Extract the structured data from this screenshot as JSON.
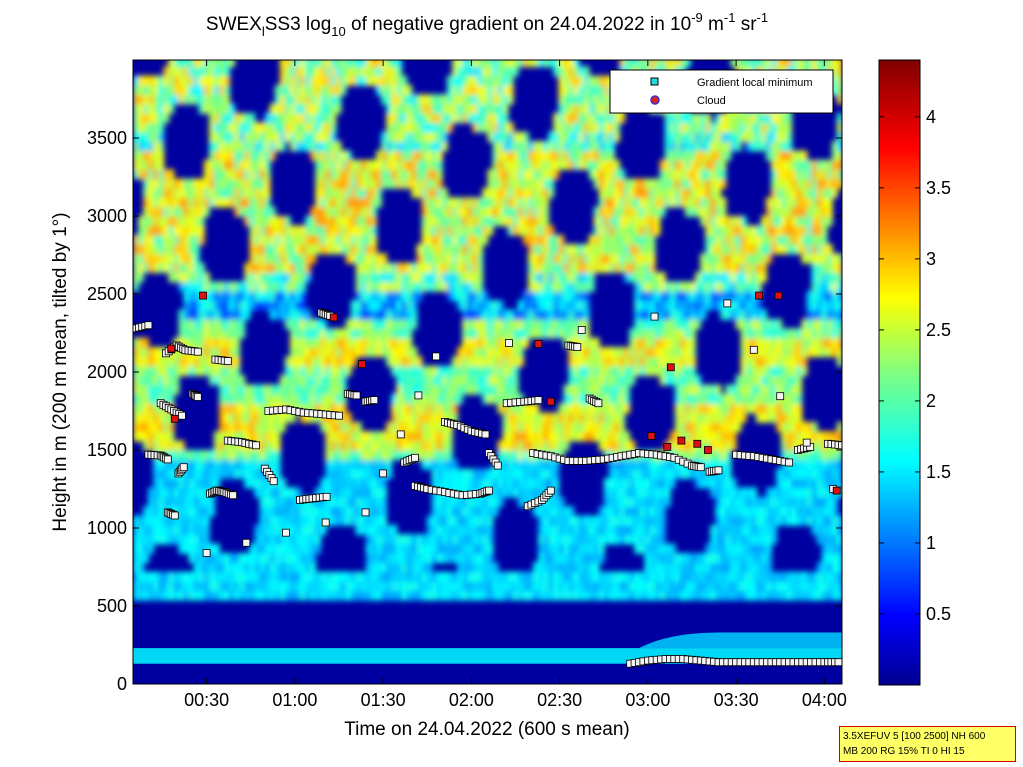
{
  "chart_data": {
    "type": "heatmap",
    "title": {
      "part1": "SWEX",
      "sub1": "l",
      "part2": "SS3 log",
      "sub2": "10",
      "part3": " of negative gradient on 24.04.2022 in 10",
      "sup1": "-9",
      "part4": " m",
      "sup2": "-1",
      "part5": " sr",
      "sup3": "-1"
    },
    "xlabel": "Time on 24.04.2022 (600 s mean)",
    "ylabel": "Height in m (200 m mean, tilted by 1°)",
    "x_ticks": [
      "00:30",
      "01:00",
      "01:30",
      "02:00",
      "02:30",
      "03:00",
      "03:30",
      "04:00"
    ],
    "x_tick_hours": [
      0.5,
      1.0,
      1.5,
      2.0,
      2.5,
      3.0,
      3.5,
      4.0
    ],
    "xlim_hours": [
      0.083,
      4.1
    ],
    "y_ticks": [
      "0",
      "500",
      "1000",
      "1500",
      "2000",
      "2500",
      "3000",
      "3500"
    ],
    "y_tick_values": [
      0,
      500,
      1000,
      1500,
      2000,
      2500,
      3000,
      3500
    ],
    "ylim": [
      0,
      4000
    ],
    "colorbar": {
      "ticks": [
        "0.5",
        "1",
        "1.5",
        "2",
        "2.5",
        "3",
        "3.5",
        "4"
      ],
      "tick_values": [
        0.5,
        1,
        1.5,
        2,
        2.5,
        3,
        3.5,
        4
      ],
      "range": [
        0,
        4.4
      ],
      "colormap": "jet"
    },
    "legend": {
      "placement": "top-right",
      "entries": [
        {
          "label": "Gradient local minimum",
          "marker": "square",
          "color": "#22dddd"
        },
        {
          "label": "Cloud",
          "marker": "circle",
          "color": "#dd2222"
        }
      ]
    },
    "series": [
      {
        "name": "Gradient local minimum",
        "tracks": [
          [
            [
              0.1,
              2280
            ],
            [
              0.17,
              2300
            ]
          ],
          [
            [
              0.17,
              1470
            ],
            [
              0.24,
              1465
            ],
            [
              0.28,
              1440
            ]
          ],
          [
            [
              0.24,
              1800
            ],
            [
              0.3,
              1760
            ],
            [
              0.36,
              1720
            ]
          ],
          [
            [
              0.27,
              2120
            ],
            [
              0.33,
              2170
            ],
            [
              0.38,
              2140
            ],
            [
              0.45,
              2130
            ]
          ],
          [
            [
              0.28,
              1100
            ],
            [
              0.32,
              1080
            ]
          ],
          [
            [
              0.34,
              1350
            ],
            [
              0.37,
              1390
            ]
          ],
          [
            [
              0.42,
              1860
            ],
            [
              0.45,
              1840
            ]
          ],
          [
            [
              0.52,
              1220
            ],
            [
              0.56,
              1240
            ],
            [
              0.6,
              1230
            ],
            [
              0.65,
              1210
            ]
          ],
          [
            [
              0.55,
              2080
            ],
            [
              0.62,
              2070
            ]
          ],
          [
            [
              0.62,
              1560
            ],
            [
              0.7,
              1550
            ],
            [
              0.78,
              1530
            ]
          ],
          [
            [
              0.83,
              1380
            ],
            [
              0.88,
              1300
            ]
          ],
          [
            [
              0.85,
              1750
            ],
            [
              0.95,
              1760
            ],
            [
              1.05,
              1740
            ],
            [
              1.15,
              1730
            ],
            [
              1.25,
              1720
            ]
          ],
          [
            [
              1.03,
              1180
            ],
            [
              1.1,
              1190
            ],
            [
              1.18,
              1200
            ]
          ],
          [
            [
              1.15,
              2380
            ],
            [
              1.2,
              2360
            ]
          ],
          [
            [
              1.3,
              1860
            ],
            [
              1.35,
              1850
            ]
          ],
          [
            [
              1.4,
              1810
            ],
            [
              1.45,
              1820
            ]
          ],
          [
            [
              1.62,
              1420
            ],
            [
              1.68,
              1450
            ]
          ],
          [
            [
              1.68,
              1270
            ],
            [
              1.75,
              1250
            ],
            [
              1.85,
              1230
            ],
            [
              1.95,
              1210
            ],
            [
              2.05,
              1220
            ],
            [
              2.1,
              1240
            ]
          ],
          [
            [
              1.85,
              1680
            ],
            [
              1.92,
              1660
            ],
            [
              2.0,
              1620
            ],
            [
              2.08,
              1600
            ]
          ],
          [
            [
              2.1,
              1480
            ],
            [
              2.15,
              1400
            ]
          ],
          [
            [
              2.2,
              1800
            ],
            [
              2.3,
              1810
            ],
            [
              2.38,
              1820
            ]
          ],
          [
            [
              2.32,
              1140
            ],
            [
              2.4,
              1180
            ],
            [
              2.45,
              1240
            ]
          ],
          [
            [
              2.35,
              1480
            ],
            [
              2.45,
              1460
            ],
            [
              2.55,
              1430
            ],
            [
              2.65,
              1430
            ],
            [
              2.75,
              1440
            ],
            [
              2.85,
              1460
            ],
            [
              2.95,
              1480
            ],
            [
              3.05,
              1470
            ],
            [
              3.15,
              1450
            ],
            [
              3.25,
              1400
            ],
            [
              3.3,
              1390
            ]
          ],
          [
            [
              2.55,
              2170
            ],
            [
              2.6,
              2160
            ]
          ],
          [
            [
              2.67,
              1830
            ],
            [
              2.72,
              1800
            ]
          ],
          [
            [
              2.9,
              130
            ],
            [
              3.0,
              150
            ],
            [
              3.1,
              160
            ],
            [
              3.2,
              160
            ],
            [
              3.3,
              150
            ],
            [
              3.4,
              140
            ],
            [
              3.5,
              140
            ],
            [
              3.6,
              140
            ],
            [
              3.7,
              140
            ],
            [
              3.8,
              140
            ],
            [
              3.9,
              140
            ],
            [
              4.0,
              140
            ],
            [
              4.08,
              140
            ]
          ],
          [
            [
              3.35,
              1360
            ],
            [
              3.4,
              1370
            ]
          ],
          [
            [
              3.5,
              1470
            ],
            [
              3.6,
              1460
            ],
            [
              3.7,
              1440
            ],
            [
              3.8,
              1420
            ]
          ],
          [
            [
              3.85,
              1500
            ],
            [
              3.92,
              1520
            ]
          ],
          [
            [
              4.02,
              1540
            ],
            [
              4.1,
              1530
            ]
          ],
          [
            [
              0.5,
              840
            ],
            [
              1.4,
              1100
            ],
            [
              1.8,
              2100
            ],
            [
              3.45,
              2440
            ],
            [
              4.05,
              1250
            ]
          ]
        ]
      },
      {
        "name": "Cloud",
        "points": [
          [
            0.48,
            2490
          ],
          [
            0.32,
            1700
          ],
          [
            0.3,
            2150
          ],
          [
            1.22,
            2350
          ],
          [
            1.38,
            2050
          ],
          [
            2.38,
            2180
          ],
          [
            2.45,
            1810
          ],
          [
            3.02,
            1590
          ],
          [
            3.11,
            1520
          ],
          [
            3.19,
            1560
          ],
          [
            3.28,
            1540
          ],
          [
            3.34,
            1500
          ],
          [
            3.13,
            2030
          ],
          [
            3.63,
            2490
          ],
          [
            3.74,
            2490
          ],
          [
            4.07,
            1240
          ]
        ]
      }
    ],
    "heatmap_features": {
      "ground_band_m": [
        130,
        230
      ],
      "surface_return_rise": {
        "start_hour": 2.95,
        "height_m": 330
      },
      "dense_layers_m": [
        [
          1500,
          1750
        ],
        [
          2000,
          2200
        ],
        [
          2600,
          3400
        ]
      ],
      "bright_patches_m": [
        [
          3500,
          3950
        ]
      ]
    }
  },
  "info_box": {
    "line1": "3.5XEFUV 5 [100 2500] NH 600",
    "line2": "MB 200 RG 15% TI 0 HI 15"
  }
}
